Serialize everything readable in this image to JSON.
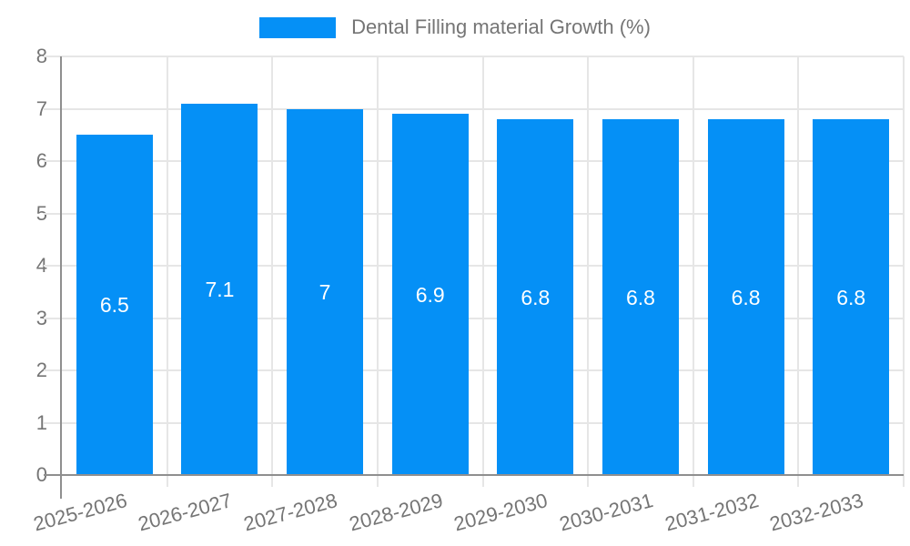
{
  "chart_data": {
    "type": "bar",
    "title": "Dental Filling material Growth (%)",
    "categories": [
      "2025-2026",
      "2026-2027",
      "2027-2028",
      "2028-2029",
      "2029-2030",
      "2030-2031",
      "2031-2032",
      "2032-2033"
    ],
    "values": [
      6.5,
      7.1,
      7,
      6.9,
      6.8,
      6.8,
      6.8,
      6.8
    ],
    "bar_labels": [
      "6.5",
      "7.1",
      "7",
      "6.9",
      "6.8",
      "6.8",
      "6.8",
      "6.8"
    ],
    "xlabel": "",
    "ylabel": "",
    "ylim": [
      0,
      8
    ],
    "yticks": [
      0,
      1,
      2,
      3,
      4,
      5,
      6,
      7,
      8
    ],
    "grid": true,
    "legend_position": "top",
    "colors": {
      "bar": "#0590f6",
      "grid": "#e6e6e6",
      "axis": "#8f8f8f",
      "text": "#757575",
      "bar_label": "#ffffff",
      "background": "#ffffff"
    }
  }
}
